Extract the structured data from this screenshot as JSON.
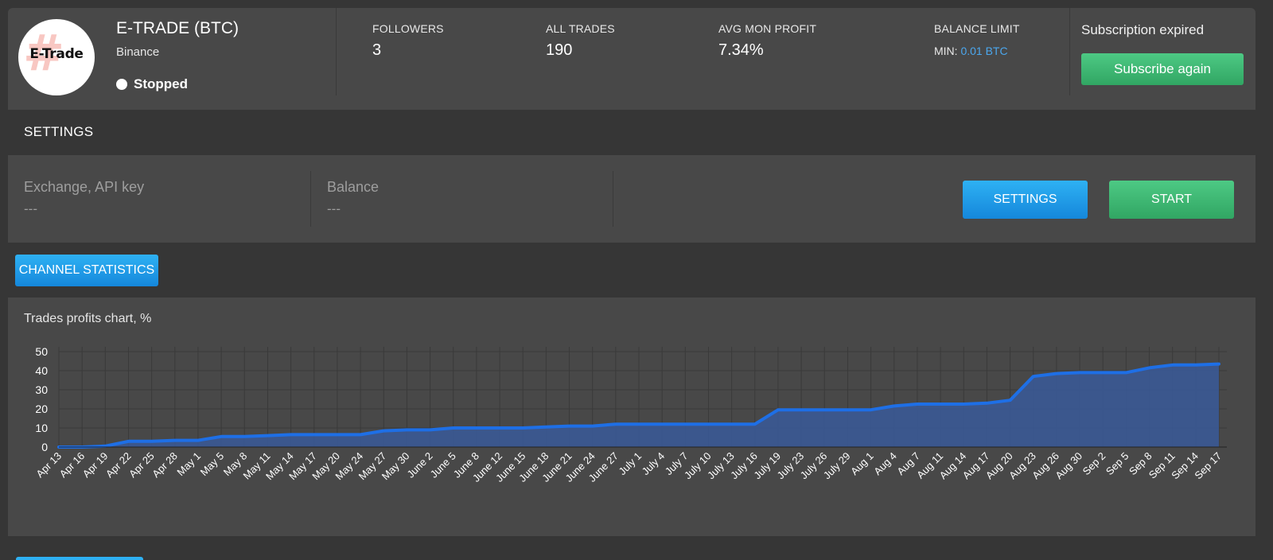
{
  "channel": {
    "logo_text": "E-Trade",
    "title": "E-TRADE (BTC)",
    "exchange": "Binance",
    "status": "Stopped"
  },
  "stats": {
    "followers_label": "FOLLOWERS",
    "followers_value": "3",
    "trades_label": "ALL TRADES",
    "trades_value": "190",
    "profit_label": "AVG MON PROFIT",
    "profit_value": "7.34%",
    "balance_label": "BALANCE LIMIT",
    "balance_min_label": "MIN:",
    "balance_min_value": "0.01 BTC"
  },
  "subscription": {
    "status": "Subscription expired",
    "button_label": "Subscribe again"
  },
  "settings": {
    "section_title": "SETTINGS",
    "exchange_label": "Exchange, API key",
    "exchange_value": "---",
    "balance_label": "Balance",
    "balance_value": "---",
    "settings_button": "SETTINGS",
    "start_button": "START"
  },
  "statistics": {
    "tab_label": "CHANNEL STATISTICS"
  },
  "colors": {
    "accent_blue": "#1587db",
    "accent_green": "#31a663",
    "series_line": "#1e6fe6",
    "series_fill": "#3a5a9a"
  },
  "chart_data": {
    "type": "area",
    "title": "Trades profits chart, %",
    "xlabel": "",
    "ylabel": "",
    "ylim": [
      0,
      50
    ],
    "yticks": [
      0,
      10,
      20,
      30,
      40,
      50
    ],
    "grid": true,
    "categories": [
      "Apr 13",
      "Apr 16",
      "Apr 19",
      "Apr 22",
      "Apr 25",
      "Apr 28",
      "May 1",
      "May 5",
      "May 8",
      "May 11",
      "May 14",
      "May 17",
      "May 20",
      "May 24",
      "May 27",
      "May 30",
      "June 2",
      "June 5",
      "June 8",
      "June 12",
      "June 15",
      "June 18",
      "June 21",
      "June 24",
      "June 27",
      "July 1",
      "July 4",
      "July 7",
      "July 10",
      "July 13",
      "July 16",
      "July 19",
      "July 23",
      "July 26",
      "July 29",
      "Aug 1",
      "Aug 4",
      "Aug 7",
      "Aug 11",
      "Aug 14",
      "Aug 17",
      "Aug 20",
      "Aug 23",
      "Aug 26",
      "Aug 30",
      "Sep 2",
      "Sep 5",
      "Sep 8",
      "Sep 11",
      "Sep 14",
      "Sep 17"
    ],
    "series": [
      {
        "values": [
          0,
          0,
          0.5,
          3,
          3,
          3.5,
          3.5,
          5.5,
          5.5,
          6,
          6.5,
          6.5,
          6.5,
          6.5,
          8.5,
          9,
          9,
          10,
          10,
          10,
          10,
          10.5,
          11,
          11,
          12,
          12,
          12,
          12,
          12,
          12,
          12,
          19.5,
          19.5,
          19.5,
          19.5,
          19.5,
          21.5,
          22.5,
          22.5,
          22.5,
          23,
          24.5,
          37,
          38.5,
          39,
          39,
          39,
          41.5,
          43,
          43,
          43.5
        ]
      }
    ]
  }
}
